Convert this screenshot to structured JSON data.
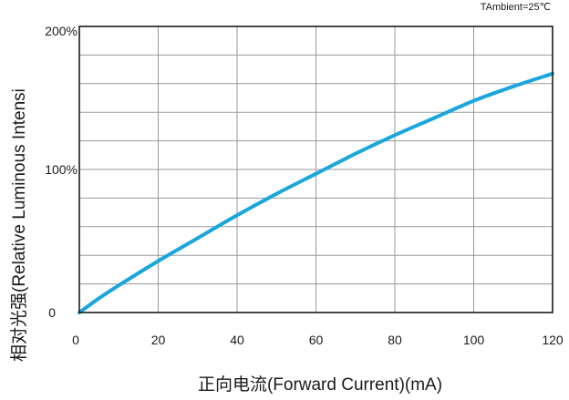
{
  "chart_data": {
    "type": "line",
    "xlabel": "正向电流(Forward Current)(mA)",
    "ylabel": "相对光强(Relative Luminous Intensi",
    "annotation": "TAmbient=25℃",
    "xlim": [
      0,
      120
    ],
    "ylim": [
      0,
      200
    ],
    "x_ticks": [
      0,
      20,
      40,
      60,
      80,
      100,
      120
    ],
    "x_tick_labels": [
      "0",
      "20",
      "40",
      "60",
      "80",
      "100",
      "120"
    ],
    "y_ticks": [
      0,
      100,
      200
    ],
    "y_tick_labels": [
      "0",
      "100%",
      "200%"
    ],
    "grid": true,
    "series": [
      {
        "color": "#1aa6dd",
        "x": [
          0,
          5,
          10,
          20,
          30,
          40,
          50,
          60,
          70,
          80,
          90,
          100,
          110,
          120
        ],
        "y": [
          0,
          10,
          19,
          36,
          52,
          68,
          83,
          97,
          111,
          124,
          136,
          148,
          158,
          167
        ]
      }
    ]
  }
}
